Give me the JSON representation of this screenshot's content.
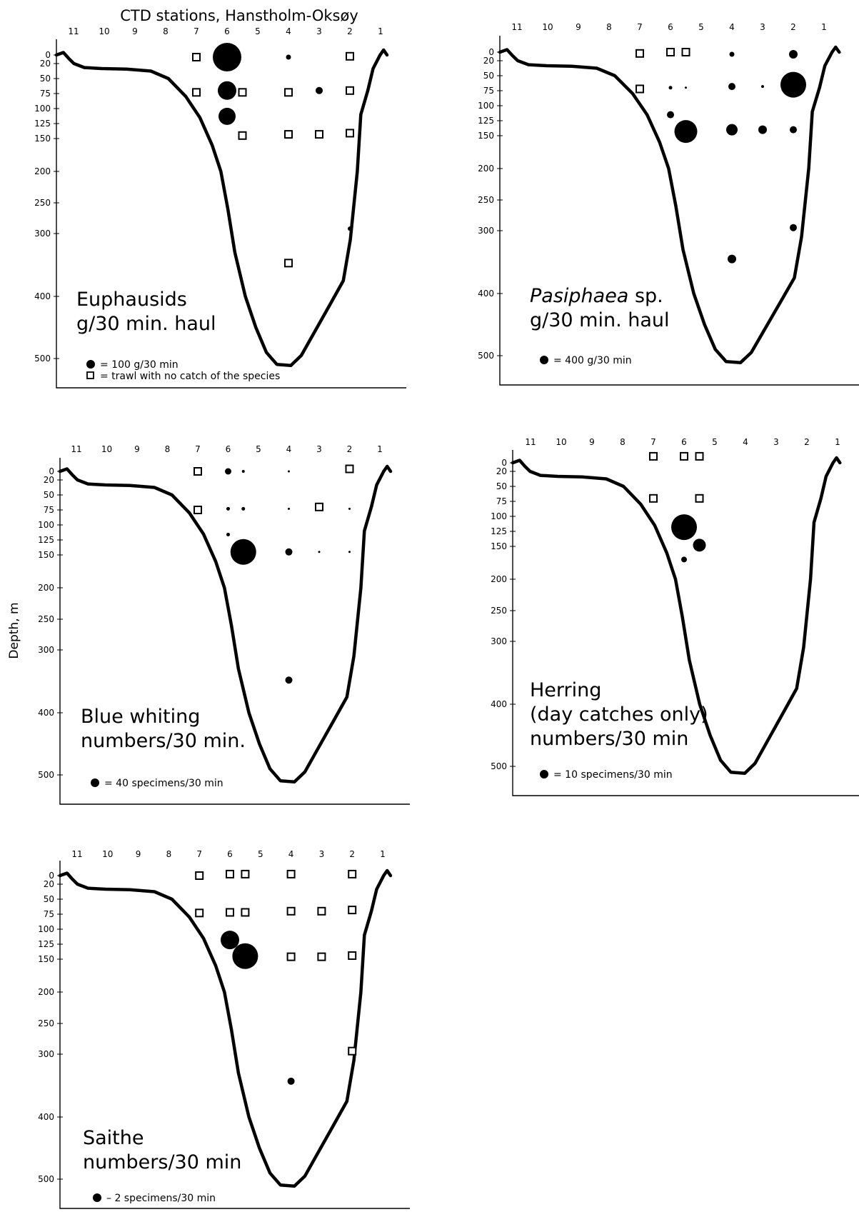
{
  "figure": {
    "main_title": "CTD stations, Hanstholm-Oksøy",
    "ylabel": "Depth, m"
  },
  "chart_data": [
    {
      "type": "scatter",
      "title_lines": [
        "Euphausids",
        "g/30 min. haul"
      ],
      "legend": [
        {
          "symbol": "filled-circle",
          "text": "= 100 g/30 min"
        },
        {
          "symbol": "open-square",
          "text": "= trawl with no catch of the species"
        }
      ],
      "station_ticks": [
        "11",
        "10",
        "9",
        "8",
        "7",
        "6",
        "5",
        "4",
        "3",
        "2",
        "1"
      ],
      "depth_ticks": [
        "0",
        "20",
        "50",
        "75",
        "100",
        "125",
        "150",
        "200",
        "250",
        "300",
        "400",
        "500"
      ],
      "xlabel": "",
      "ylim": [
        0,
        550
      ],
      "catches": [
        {
          "station": 6.0,
          "depth": 5,
          "r": 20
        },
        {
          "station": 4.0,
          "depth": 5,
          "r": 3.5
        },
        {
          "station": 6.0,
          "depth": 70,
          "r": 13
        },
        {
          "station": 3.0,
          "depth": 70,
          "r": 5
        },
        {
          "station": 6.0,
          "depth": 113,
          "r": 12
        },
        {
          "station": 2.0,
          "depth": 292,
          "r": 3
        }
      ],
      "no_catch": [
        {
          "station": 7.0,
          "depth": 5
        },
        {
          "station": 2.0,
          "depth": 3
        },
        {
          "station": 7.0,
          "depth": 73
        },
        {
          "station": 5.5,
          "depth": 73
        },
        {
          "station": 4.0,
          "depth": 73
        },
        {
          "station": 2.0,
          "depth": 70
        },
        {
          "station": 5.5,
          "depth": 145
        },
        {
          "station": 4.0,
          "depth": 143
        },
        {
          "station": 3.0,
          "depth": 143
        },
        {
          "station": 2.0,
          "depth": 141
        },
        {
          "station": 4.0,
          "depth": 347
        }
      ]
    },
    {
      "type": "scatter",
      "title_lines": [
        "Pasiphaea sp.",
        "g/30 min. haul"
      ],
      "title_italic_word": "Pasiphaea",
      "legend": [
        {
          "symbol": "filled-circle",
          "text": "= 400 g/30 min"
        }
      ],
      "station_ticks": [
        "11",
        "10",
        "9",
        "8",
        "7",
        "6",
        "5",
        "4",
        "3",
        "2",
        "1"
      ],
      "depth_ticks": [
        "0",
        "20",
        "50",
        "75",
        "100",
        "125",
        "150",
        "200",
        "250",
        "300",
        "400",
        "500"
      ],
      "xlabel": "",
      "ylim": [
        0,
        550
      ],
      "catches": [
        {
          "station": 4.0,
          "depth": 5,
          "r": 3.5
        },
        {
          "station": 2.0,
          "depth": 5,
          "r": 6
        },
        {
          "station": 6.0,
          "depth": 70,
          "r": 2.5
        },
        {
          "station": 5.5,
          "depth": 70,
          "r": 1.5
        },
        {
          "station": 4.0,
          "depth": 68,
          "r": 5
        },
        {
          "station": 3.0,
          "depth": 68,
          "r": 2
        },
        {
          "station": 2.0,
          "depth": 65,
          "r": 18
        },
        {
          "station": 6.0,
          "depth": 115,
          "r": 5
        },
        {
          "station": 5.5,
          "depth": 143,
          "r": 16
        },
        {
          "station": 4.0,
          "depth": 140,
          "r": 8
        },
        {
          "station": 3.0,
          "depth": 140,
          "r": 6
        },
        {
          "station": 2.0,
          "depth": 140,
          "r": 5
        },
        {
          "station": 2.0,
          "depth": 295,
          "r": 5
        },
        {
          "station": 4.0,
          "depth": 345,
          "r": 6
        }
      ],
      "no_catch": [
        {
          "station": 7.0,
          "depth": 3
        },
        {
          "station": 6.0,
          "depth": 0
        },
        {
          "station": 5.5,
          "depth": 0
        },
        {
          "station": 7.0,
          "depth": 72
        }
      ]
    },
    {
      "type": "scatter",
      "title_lines": [
        "Blue whiting",
        "numbers/30 min."
      ],
      "legend": [
        {
          "symbol": "filled-circle",
          "text": "= 40 specimens/30 min"
        }
      ],
      "station_ticks": [
        "11",
        "10",
        "9",
        "8",
        "7",
        "6",
        "5",
        "4",
        "3",
        "2",
        "1"
      ],
      "depth_ticks": [
        "0",
        "20",
        "50",
        "75",
        "100",
        "125",
        "150",
        "200",
        "250",
        "300",
        "400",
        "500"
      ],
      "xlabel": "",
      "ylim": [
        0,
        550
      ],
      "catches": [
        {
          "station": 6.0,
          "depth": 0,
          "r": 4.5
        },
        {
          "station": 5.5,
          "depth": 0,
          "r": 2
        },
        {
          "station": 4.0,
          "depth": 0,
          "r": 1.5
        },
        {
          "station": 6.0,
          "depth": 73,
          "r": 2.5
        },
        {
          "station": 5.5,
          "depth": 73,
          "r": 2.5
        },
        {
          "station": 4.0,
          "depth": 73,
          "r": 1.5
        },
        {
          "station": 2.0,
          "depth": 73,
          "r": 1.5
        },
        {
          "station": 6.0,
          "depth": 116,
          "r": 2.5
        },
        {
          "station": 5.5,
          "depth": 145,
          "r": 18
        },
        {
          "station": 4.0,
          "depth": 145,
          "r": 5
        },
        {
          "station": 3.0,
          "depth": 145,
          "r": 1.5
        },
        {
          "station": 2.0,
          "depth": 145,
          "r": 1.5
        },
        {
          "station": 4.0,
          "depth": 348,
          "r": 5
        }
      ],
      "no_catch": [
        {
          "station": 7.0,
          "depth": 0
        },
        {
          "station": 2.0,
          "depth": -5
        },
        {
          "station": 7.0,
          "depth": 75
        },
        {
          "station": 3.0,
          "depth": 70
        }
      ]
    },
    {
      "type": "scatter",
      "title_lines": [
        "Herring",
        "(day catches only)",
        "numbers/30 min"
      ],
      "legend": [
        {
          "symbol": "filled-circle",
          "text": "= 10 specimens/30 min"
        }
      ],
      "station_ticks": [
        "11",
        "10",
        "9",
        "8",
        "7",
        "6",
        "5",
        "4",
        "3",
        "2",
        "1"
      ],
      "depth_ticks": [
        "0",
        "20",
        "50",
        "75",
        "100",
        "125",
        "150",
        "200",
        "250",
        "300",
        "400",
        "500"
      ],
      "xlabel": "",
      "ylim": [
        0,
        550
      ],
      "catches": [
        {
          "station": 6.0,
          "depth": 118,
          "r": 18
        },
        {
          "station": 5.5,
          "depth": 148,
          "r": 9
        },
        {
          "station": 6.0,
          "depth": 170,
          "r": 4
        }
      ],
      "no_catch": [
        {
          "station": 7.0,
          "depth": -13
        },
        {
          "station": 6.0,
          "depth": -13
        },
        {
          "station": 5.5,
          "depth": -13
        },
        {
          "station": 7.0,
          "depth": 70
        },
        {
          "station": 5.5,
          "depth": 70
        }
      ]
    },
    {
      "type": "scatter",
      "title_lines": [
        "Saithe",
        "numbers/30 min"
      ],
      "legend": [
        {
          "symbol": "filled-circle",
          "text": "– 2 specimens/30 min"
        }
      ],
      "station_ticks": [
        "11",
        "10",
        "9",
        "8",
        "7",
        "6",
        "5",
        "4",
        "3",
        "2",
        "1"
      ],
      "depth_ticks": [
        "0",
        "20",
        "50",
        "75",
        "100",
        "125",
        "150",
        "200",
        "250",
        "300",
        "400",
        "500"
      ],
      "xlabel": "",
      "ylim": [
        0,
        550
      ],
      "catches": [
        {
          "station": 6.0,
          "depth": 118,
          "r": 13
        },
        {
          "station": 5.5,
          "depth": 145,
          "r": 18
        },
        {
          "station": 4.0,
          "depth": 343,
          "r": 5
        }
      ],
      "no_catch": [
        {
          "station": 7.0,
          "depth": 0
        },
        {
          "station": 6.0,
          "depth": -3
        },
        {
          "station": 5.5,
          "depth": -3
        },
        {
          "station": 4.0,
          "depth": -3
        },
        {
          "station": 2.0,
          "depth": -3
        },
        {
          "station": 7.0,
          "depth": 73
        },
        {
          "station": 6.0,
          "depth": 72
        },
        {
          "station": 5.5,
          "depth": 72
        },
        {
          "station": 4.0,
          "depth": 70
        },
        {
          "station": 3.0,
          "depth": 70
        },
        {
          "station": 2.0,
          "depth": 68
        },
        {
          "station": 4.0,
          "depth": 146
        },
        {
          "station": 3.0,
          "depth": 146
        },
        {
          "station": 2.0,
          "depth": 144
        },
        {
          "station": 2.0,
          "depth": 295
        }
      ]
    }
  ]
}
